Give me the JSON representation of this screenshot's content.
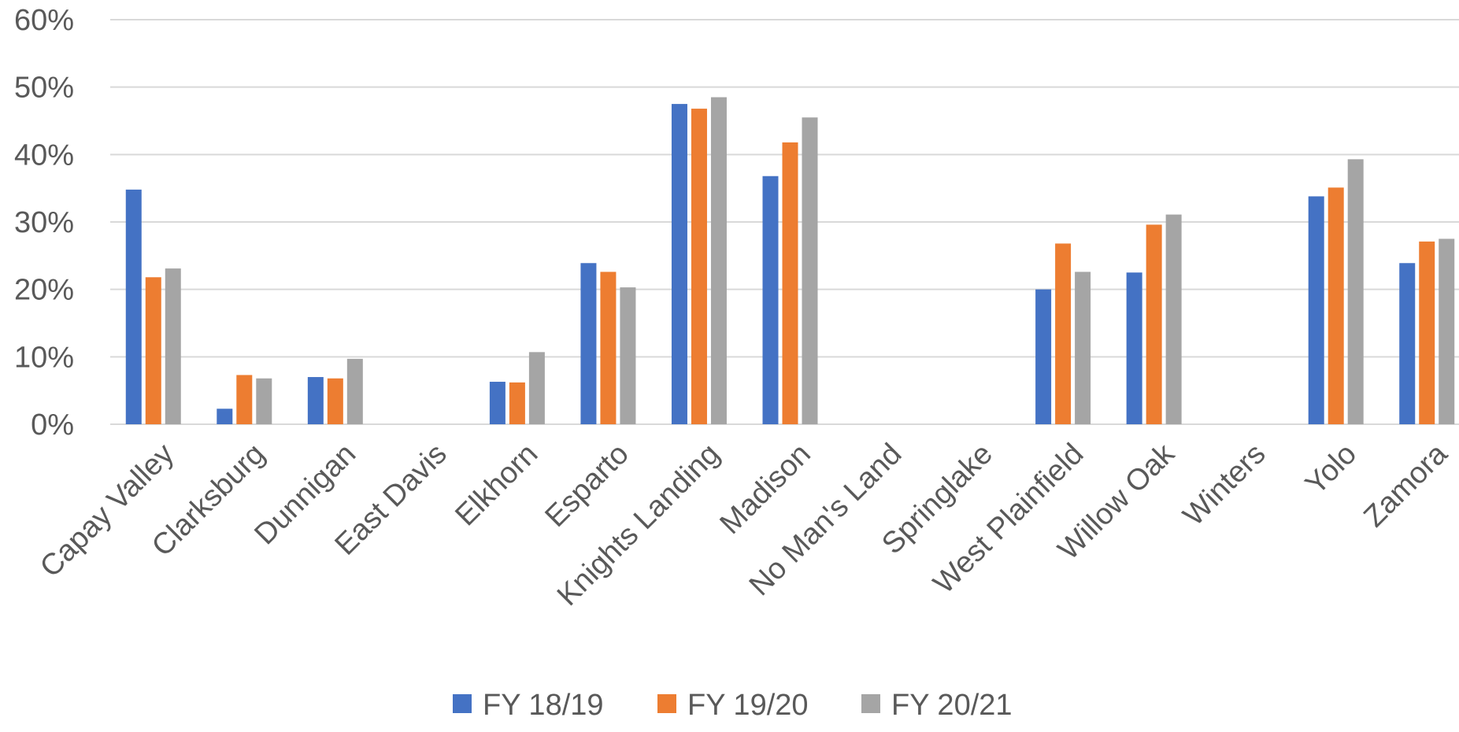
{
  "chart_data": {
    "type": "bar",
    "categories": [
      "Capay Valley",
      "Clarksburg",
      "Dunnigan",
      "East Davis",
      "Elkhorn",
      "Esparto",
      "Knights Landing",
      "Madison",
      "No Man's Land",
      "Springlake",
      "West Plainfield",
      "Willow Oak",
      "Winters",
      "Yolo",
      "Zamora"
    ],
    "series": [
      {
        "name": "FY 18/19",
        "color": "#4472c4",
        "values": [
          34.8,
          2.3,
          7.0,
          null,
          6.3,
          23.9,
          47.5,
          36.8,
          null,
          null,
          20.0,
          22.5,
          null,
          33.8,
          23.9
        ]
      },
      {
        "name": "FY 19/20",
        "color": "#ed7d31",
        "values": [
          21.8,
          7.3,
          6.8,
          null,
          6.2,
          22.6,
          46.8,
          41.8,
          null,
          null,
          26.8,
          29.6,
          null,
          35.1,
          27.1
        ]
      },
      {
        "name": "FY 20/21",
        "color": "#a5a5a5",
        "values": [
          23.1,
          6.8,
          9.7,
          null,
          10.7,
          20.3,
          48.5,
          45.5,
          null,
          null,
          22.6,
          31.1,
          null,
          39.3,
          27.5
        ]
      }
    ],
    "yticks": [
      "0%",
      "10%",
      "20%",
      "30%",
      "40%",
      "50%",
      "60%"
    ],
    "ylim": [
      0,
      60
    ],
    "grid": true,
    "legend_position": "bottom",
    "title": "",
    "xlabel": "",
    "ylabel": ""
  }
}
